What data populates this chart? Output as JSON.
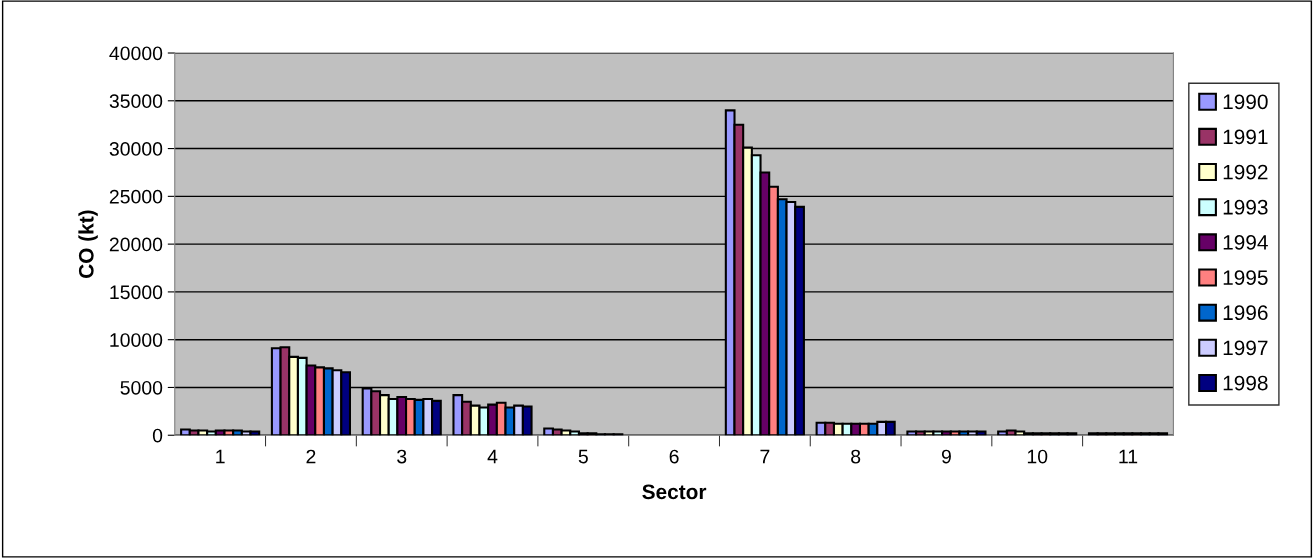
{
  "chart_data": {
    "type": "bar",
    "xlabel": "Sector",
    "ylabel": "CO (kt)",
    "categories": [
      "1",
      "2",
      "3",
      "4",
      "5",
      "6",
      "7",
      "8",
      "9",
      "10",
      "11"
    ],
    "ylim": [
      0,
      40000
    ],
    "yticks": [
      0,
      5000,
      10000,
      15000,
      20000,
      25000,
      30000,
      35000,
      40000
    ],
    "grid": "y",
    "legend": "right",
    "series": [
      {
        "name": "1990",
        "color": "#9999ff",
        "values": [
          600,
          9100,
          4900,
          4200,
          700,
          null,
          34000,
          1300,
          400,
          400,
          200
        ]
      },
      {
        "name": "1991",
        "color": "#993366",
        "values": [
          500,
          9200,
          4600,
          3500,
          600,
          null,
          32500,
          1300,
          400,
          500,
          200
        ]
      },
      {
        "name": "1992",
        "color": "#ffffcc",
        "values": [
          500,
          8200,
          4200,
          3100,
          500,
          null,
          30100,
          1200,
          400,
          400,
          200
        ]
      },
      {
        "name": "1993",
        "color": "#ccffff",
        "values": [
          400,
          8100,
          3800,
          2900,
          400,
          null,
          29300,
          1200,
          400,
          200,
          200
        ]
      },
      {
        "name": "1994",
        "color": "#660066",
        "values": [
          500,
          7300,
          4000,
          3200,
          200,
          null,
          27500,
          1200,
          400,
          200,
          200
        ]
      },
      {
        "name": "1995",
        "color": "#ff8080",
        "values": [
          500,
          7100,
          3800,
          3400,
          200,
          null,
          26000,
          1200,
          400,
          200,
          200
        ]
      },
      {
        "name": "1996",
        "color": "#0066cc",
        "values": [
          500,
          7000,
          3700,
          2900,
          100,
          null,
          24700,
          1200,
          400,
          200,
          200
        ]
      },
      {
        "name": "1997",
        "color": "#ccccff",
        "values": [
          400,
          6800,
          3800,
          3100,
          100,
          null,
          24400,
          1400,
          400,
          200,
          200
        ]
      },
      {
        "name": "1998",
        "color": "#000080",
        "values": [
          400,
          6600,
          3600,
          3000,
          100,
          null,
          23900,
          1400,
          400,
          200,
          200
        ]
      }
    ]
  }
}
